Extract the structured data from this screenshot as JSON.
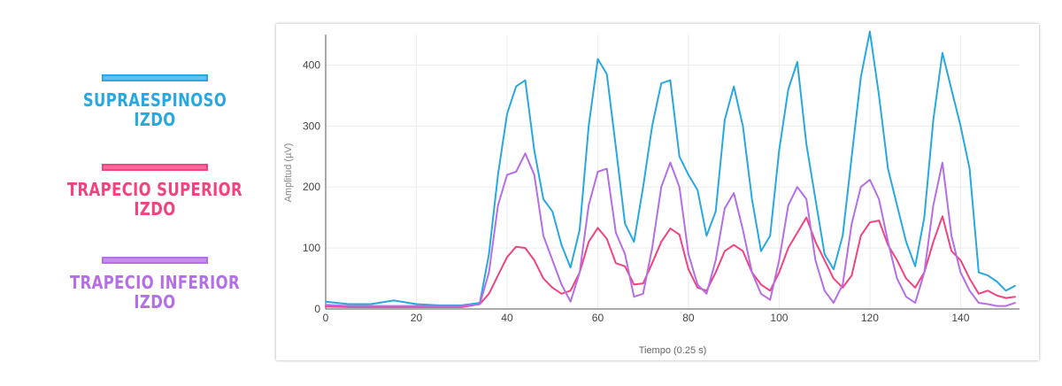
{
  "legend": {
    "items": [
      {
        "label_line1": "SUPRAESPINOSO",
        "label_line2": "IZDO",
        "color": "#27a8e0"
      },
      {
        "label_line1": "TRAPECIO SUPERIOR",
        "label_line2": "IZDO",
        "color": "#f0437f"
      },
      {
        "label_line1": "TRAPECIO INFERIOR",
        "label_line2": "IZDO",
        "color": "#b46ee8"
      }
    ]
  },
  "chart_data": {
    "type": "line",
    "xlabel": "Tiempo (0.25 s)",
    "ylabel": "Amplitud (µV)",
    "xlim": [
      0,
      153
    ],
    "ylim": [
      0,
      450
    ],
    "xticks": [
      0,
      20,
      40,
      60,
      80,
      100,
      120,
      140
    ],
    "yticks": [
      0,
      100,
      200,
      300,
      400
    ],
    "grid": true,
    "series": [
      {
        "color": "#27a8e0",
        "x": [
          0,
          5,
          10,
          15,
          20,
          25,
          30,
          34,
          36,
          38,
          40,
          42,
          44,
          46,
          48,
          50,
          52,
          54,
          56,
          58,
          60,
          62,
          64,
          66,
          68,
          70,
          72,
          74,
          76,
          78,
          80,
          82,
          84,
          86,
          88,
          90,
          92,
          94,
          96,
          98,
          100,
          102,
          104,
          106,
          108,
          110,
          112,
          114,
          116,
          118,
          120,
          122,
          124,
          126,
          128,
          130,
          132,
          134,
          136,
          138,
          140,
          142,
          144,
          146,
          148,
          150,
          152
        ],
        "y": [
          12,
          8,
          8,
          14,
          8,
          6,
          6,
          10,
          90,
          220,
          320,
          365,
          375,
          260,
          180,
          160,
          105,
          68,
          130,
          300,
          410,
          385,
          265,
          140,
          110,
          200,
          300,
          370,
          375,
          250,
          220,
          195,
          120,
          160,
          310,
          365,
          300,
          180,
          95,
          120,
          260,
          360,
          405,
          270,
          180,
          90,
          65,
          120,
          250,
          380,
          455,
          350,
          230,
          170,
          110,
          70,
          150,
          310,
          420,
          360,
          300,
          230,
          60,
          55,
          45,
          30,
          38
        ]
      },
      {
        "color": "#f0437f",
        "x": [
          0,
          5,
          10,
          15,
          20,
          25,
          30,
          34,
          36,
          38,
          40,
          42,
          44,
          46,
          48,
          50,
          52,
          54,
          56,
          58,
          60,
          62,
          64,
          66,
          68,
          70,
          72,
          74,
          76,
          78,
          80,
          82,
          84,
          86,
          88,
          90,
          92,
          94,
          96,
          98,
          100,
          102,
          104,
          106,
          108,
          110,
          112,
          114,
          116,
          118,
          120,
          122,
          124,
          126,
          128,
          130,
          132,
          134,
          136,
          138,
          140,
          142,
          144,
          146,
          148,
          150,
          152
        ],
        "y": [
          4,
          3,
          3,
          3,
          3,
          3,
          3,
          8,
          25,
          55,
          85,
          102,
          100,
          80,
          50,
          35,
          25,
          30,
          60,
          110,
          133,
          115,
          75,
          70,
          40,
          42,
          75,
          110,
          132,
          122,
          65,
          35,
          30,
          60,
          95,
          105,
          95,
          60,
          40,
          30,
          60,
          100,
          125,
          150,
          110,
          80,
          50,
          35,
          55,
          120,
          142,
          145,
          105,
          80,
          50,
          35,
          60,
          110,
          152,
          95,
          80,
          50,
          25,
          30,
          22,
          18,
          20
        ]
      },
      {
        "color": "#b46ee8",
        "x": [
          0,
          5,
          10,
          15,
          20,
          25,
          30,
          34,
          36,
          38,
          40,
          42,
          44,
          46,
          48,
          50,
          52,
          54,
          56,
          58,
          60,
          62,
          64,
          66,
          68,
          70,
          72,
          74,
          76,
          78,
          80,
          82,
          84,
          86,
          88,
          90,
          92,
          94,
          96,
          98,
          100,
          102,
          104,
          106,
          108,
          110,
          112,
          114,
          116,
          118,
          120,
          122,
          124,
          126,
          128,
          130,
          132,
          134,
          136,
          138,
          140,
          142,
          144,
          146,
          148,
          150,
          152
        ],
        "y": [
          7,
          5,
          5,
          5,
          5,
          5,
          5,
          8,
          60,
          170,
          220,
          225,
          255,
          220,
          120,
          80,
          40,
          12,
          60,
          170,
          225,
          230,
          125,
          90,
          20,
          25,
          100,
          200,
          240,
          200,
          90,
          40,
          25,
          80,
          165,
          190,
          130,
          60,
          25,
          15,
          80,
          170,
          200,
          180,
          80,
          30,
          10,
          40,
          140,
          200,
          212,
          180,
          110,
          50,
          20,
          10,
          60,
          170,
          240,
          120,
          60,
          30,
          10,
          8,
          5,
          5,
          10
        ]
      }
    ]
  }
}
